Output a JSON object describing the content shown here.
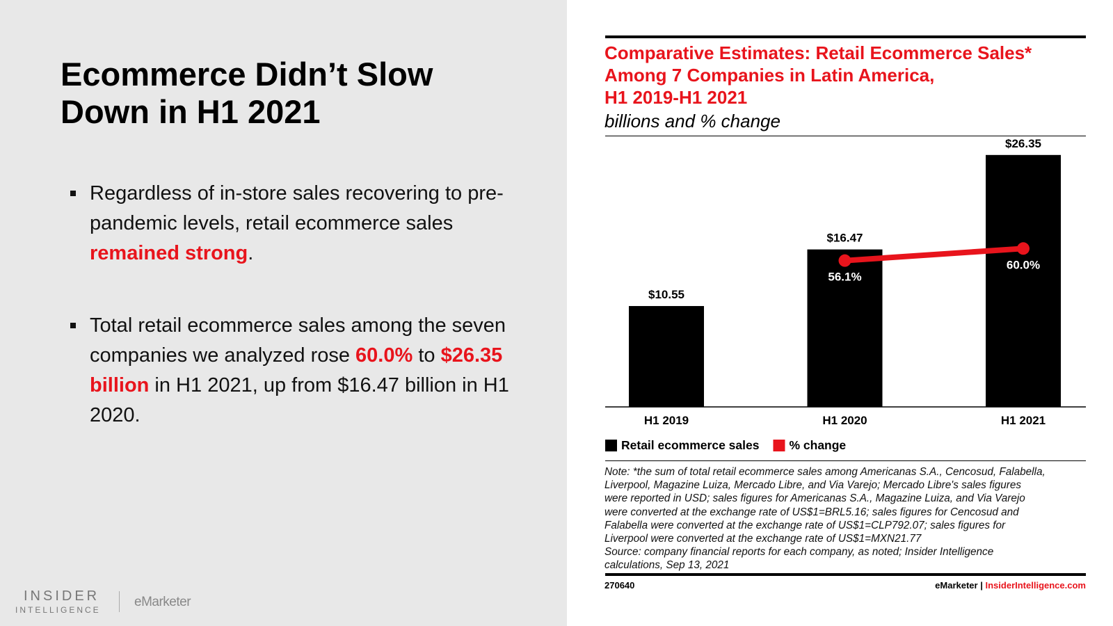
{
  "slide": {
    "title_lines": [
      "Ecommerce Didn’t Slow",
      "Down in H1 2021"
    ],
    "bullets": [
      [
        "Regardless of in-store sales recovering to pre-pandemic levels, retail ecommerce sales ",
        "remained strong",
        "."
      ],
      [
        "Total retail ecommerce sales among the seven companies we analyzed rose ",
        "60.0%",
        " to ",
        "$26.35 billion",
        " in H1 2021, up from $16.47 billion in H1 2020."
      ]
    ],
    "logo": {
      "line1": "INSIDER",
      "line2": "INTELLIGENCE",
      "brand": "eMarketer"
    }
  },
  "chart_data": {
    "type": "bar",
    "title_lines": [
      "Comparative Estimates: Retail Ecommerce Sales*",
      "Among 7 Companies in Latin America,",
      "H1 2019-H1 2021"
    ],
    "subtitle": "billions and % change",
    "categories": [
      "H1 2019",
      "H1 2020",
      "H1 2021"
    ],
    "series": [
      {
        "name": "Retail ecommerce sales",
        "type": "bar",
        "color": "#000000",
        "values": [
          10.55,
          16.47,
          26.35
        ],
        "value_labels": [
          "$10.55",
          "$16.47",
          "$26.35"
        ]
      },
      {
        "name": "% change",
        "type": "line",
        "axis": "y2",
        "color": "#e8141c",
        "values": [
          null,
          56.1,
          60.0
        ],
        "value_labels": [
          null,
          "56.1%",
          "60.0%"
        ]
      }
    ],
    "ylim": [
      0,
      28.3
    ],
    "y2lim": [
      8.9,
      96.2
    ],
    "note_lines": [
      "Note: *the sum of total retail ecommerce sales among Americanas S.A., Cencosud, Falabella,",
      "Liverpool, Magazine Luiza, Mercado Libre, and Via Varejo; Mercado Libre's sales figures",
      "were reported in USD; sales figures for Americanas S.A., Magazine Luiza, and Via Varejo",
      "were converted at the exchange rate of US$1=BRL5.16; sales figures for Cencosud and",
      "Falabella were converted at the exchange rate of US$1=CLP792.07; sales figures for",
      "Liverpool were converted at the exchange rate of US$1=MXN21.77",
      "Source: company financial reports for each company, as noted; Insider Intelligence",
      "calculations, Sep 13, 2021"
    ],
    "footer": {
      "id": "270640",
      "brand": "eMarketer",
      "separator": "|",
      "site": "InsiderIntelligence.com"
    }
  }
}
